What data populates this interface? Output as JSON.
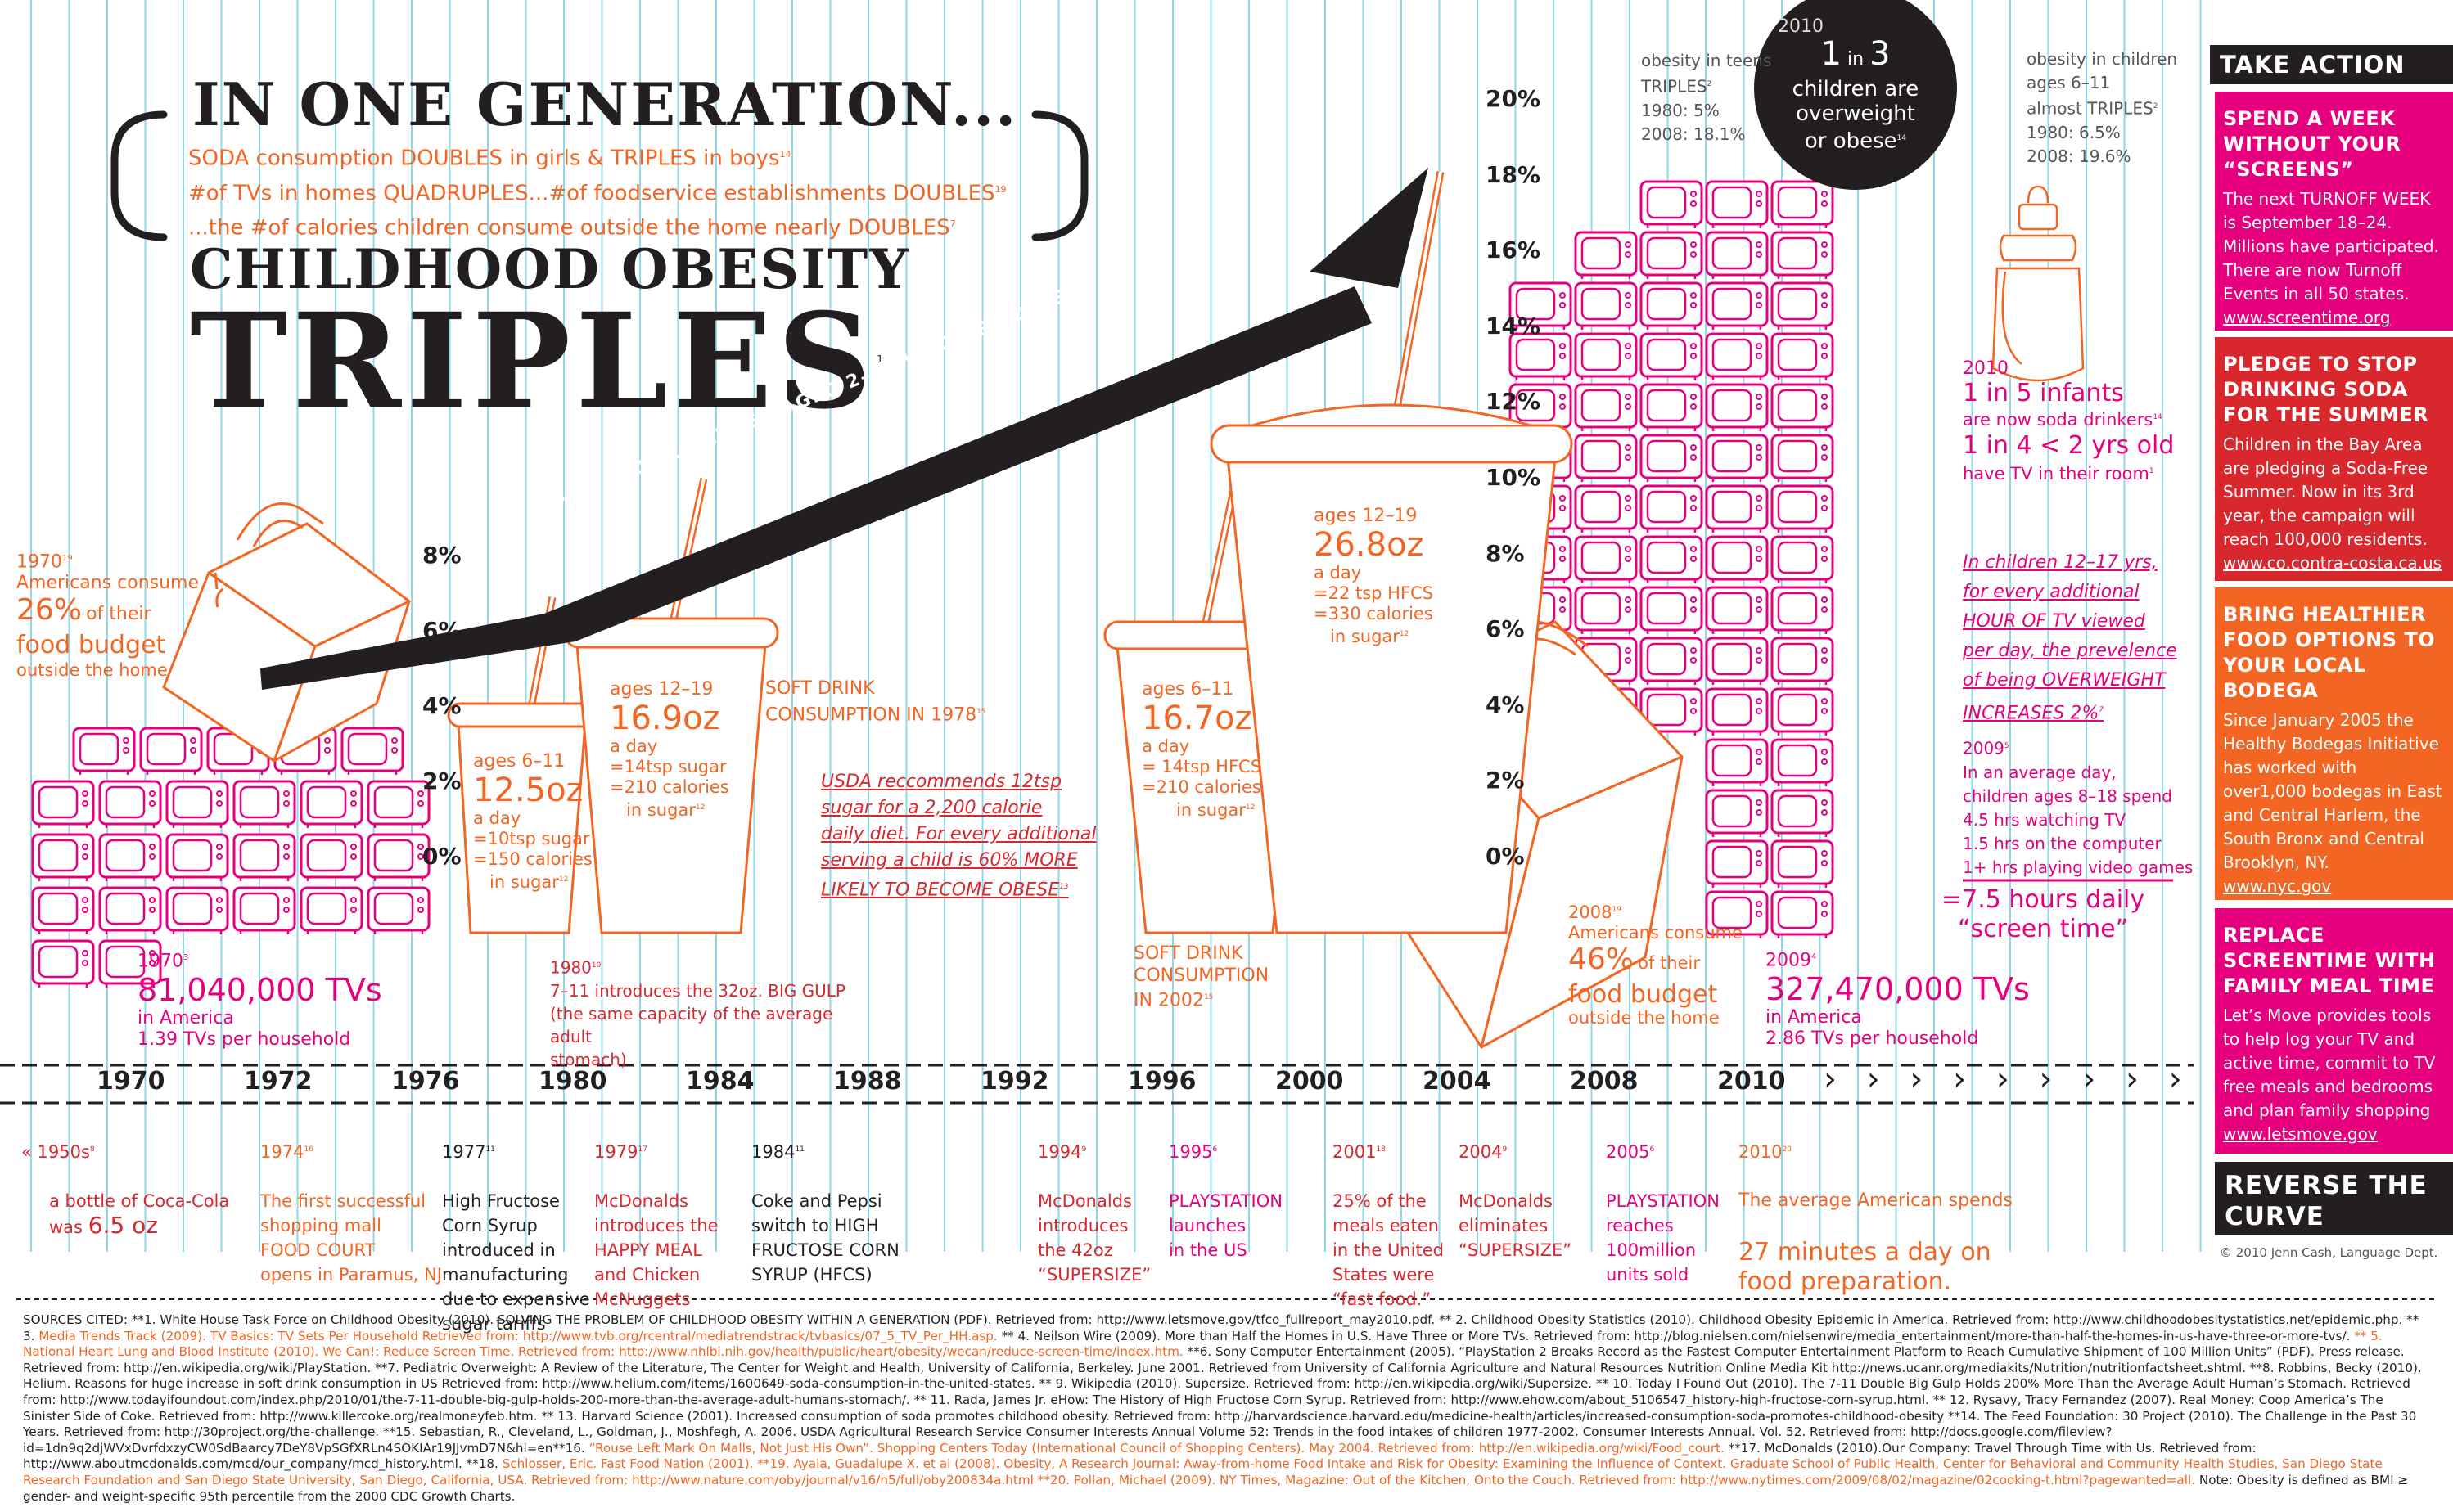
{
  "headline": {
    "line1": "IN ONE GENERATION...",
    "bullets": [
      {
        "text": "SODA consumption DOUBLES in girls & TRIPLES in boys",
        "note": "14"
      },
      {
        "text": "#of TVs in homes QUADRUPLES...#of foodservice establishments DOUBLES",
        "note": "19"
      },
      {
        "text": "...the #of calories children consume outside the home nearly DOUBLES",
        "note": "7"
      }
    ],
    "line2": "CHILDHOOD OBESITY",
    "line3": "TRIPLES",
    "line3_note": "1"
  },
  "colors": {
    "orange": "#f26522",
    "pink": "#e6007e",
    "red": "#d9272e",
    "black": "#231f20",
    "grid": "#7fd3e6"
  },
  "y_axis_left": {
    "ticks": [
      "8%",
      "6%",
      "4%",
      "2%",
      "0%"
    ]
  },
  "y_axis_right": {
    "ticks": [
      "20%",
      "18%",
      "16%",
      "14%",
      "12%",
      "10%",
      "8%",
      "6%",
      "4%",
      "2%",
      "0%"
    ]
  },
  "arrow_label": "› › ›  % OF CHILDREN AGED 2–19 WHO ARE OBESE  › › ›",
  "left_budget": {
    "year": "1970",
    "note": "19",
    "line1": "Americans consume",
    "pct": "26%",
    "of_their": "of their",
    "line3": "food budget",
    "line4": "outside the home"
  },
  "tvs_1970": {
    "year": "1970",
    "note": "3",
    "count": "81,040,000 TVs",
    "where": "in America",
    "per": "1.39 TVs per household"
  },
  "cup_1": {
    "age": "ages 6–11",
    "size": "12.5oz",
    "freq": "a day",
    "sugar": "=10tsp sugar",
    "cal": "=150 calories",
    "insugar": "in sugar",
    "note": "12"
  },
  "cup_2": {
    "age": "ages 12–19",
    "size": "16.9oz",
    "freq": "a day",
    "sugar": "=14tsp sugar",
    "cal": "=210 calories",
    "insugar": "in sugar",
    "note": "12"
  },
  "soft_1978": {
    "line1": "SOFT DRINK",
    "line2": "CONSUMPTION IN 1978",
    "note": "15"
  },
  "gulp_1980": {
    "year": "1980",
    "note": "10",
    "line1": "7–11 introduces the 32oz. BIG GULP",
    "line2": "(the same capacity of the average adult",
    "line3": "stomach)"
  },
  "usda_note": {
    "lines": [
      "USDA reccommends 12tsp",
      "sugar for a 2,200 calorie",
      "daily diet. For every additional",
      "serving a child  is 60% MORE",
      "LIKELY TO BECOME OBESE"
    ],
    "note": "13"
  },
  "cup_3": {
    "age": "ages 6–11",
    "size": "16.7oz",
    "freq": "a day",
    "sugar": "= 14tsp HFCS",
    "cal": "=210 calories",
    "insugar": "in sugar",
    "note": "12"
  },
  "cup_4": {
    "age": "ages 12–19",
    "size": "26.8oz",
    "freq": "a day",
    "sugar": "=22 tsp HFCS",
    "cal": "=330 calories",
    "insugar": "in sugar",
    "note": "12"
  },
  "soft_2002": {
    "line1": "SOFT DRINK",
    "line2": "CONSUMPTION",
    "line3": "IN 2002",
    "note": "15"
  },
  "budget_2008": {
    "year": "2008",
    "note": "19",
    "line1": "Americans consume",
    "pct": "46%",
    "of_their": "of their",
    "line3": "food budget",
    "line4": "outside the home"
  },
  "tvs_2009": {
    "year": "2009",
    "note": "4",
    "count": "327,470,000 TVs",
    "where": "in America",
    "per": "2.86 TVs per household"
  },
  "obesity_teens": {
    "l1": "obesity in teens",
    "l2": "TRIPLES",
    "note": "2",
    "l3": "1980: 5%",
    "l4": "2008: 18.1%"
  },
  "circle": {
    "year": "2010",
    "l1a": "1",
    "l1b": "in",
    "l1c": "3",
    "l2": "children are",
    "l3": "overweight",
    "l4": "or obese",
    "note": "14"
  },
  "obesity_children": {
    "l1": "obesity in children",
    "l2": "ages 6–11",
    "l3": "almost TRIPLES",
    "note": "2",
    "l4": "1980: 6.5%",
    "l5": "2008: 19.6%"
  },
  "infants": {
    "year": "2010",
    "l1": "1 in 5 infants",
    "l2": "are now soda drinkers",
    "note1": "14",
    "l3": "1 in 4 < 2 yrs old",
    "l4": "have TV in their room",
    "note2": "1"
  },
  "tv_overweight": {
    "lines": [
      "In children 12–17 yrs,",
      "for every additional",
      "HOUR OF TV viewed",
      "per day, the prevelence",
      "of being OVERWEIGHT",
      "INCREASES 2%"
    ],
    "note": "7"
  },
  "screen_2009": {
    "year": "2009",
    "note": "5",
    "lines": [
      "In an average day,",
      "children ages 8–18 spend",
      "4.5 hrs watching TV",
      "1.5 hrs on the computer",
      "1+ hrs playing video games"
    ],
    "total1": "=7.5 hours daily",
    "total2": "“screen time”"
  },
  "timeline": {
    "years": [
      "1970",
      "1972",
      "1976",
      "1980",
      "1984",
      "1988",
      "1992",
      "1996",
      "2000",
      "2004",
      "2008",
      "2010"
    ],
    "chevrons": "›  ›  ›  ›  ›  ›  ›  ›  ›  ›",
    "events": [
      {
        "date": "« 1950s",
        "note": "8",
        "text": "a bottle of Coca-Cola\nwas",
        "big": "6.5 oz"
      },
      {
        "date": "1974",
        "note": "16",
        "text": "The first successful\nshopping mall\nFOOD COURT\nopens in Paramus, NJ"
      },
      {
        "date": "1977",
        "note": "11",
        "text": "High Fructose\nCorn Syrup\nintroduced in\nmanufacturing\ndue to expensive\nsugar tariffs"
      },
      {
        "date": "1979",
        "note": "17",
        "text": "McDonalds\nintroduces the\nHAPPY MEAL\nand Chicken\nMcNuggets"
      },
      {
        "date": "1984",
        "note": "11",
        "text": "Coke and Pepsi\nswitch to HIGH\nFRUCTOSE CORN\nSYRUP (HFCS)"
      },
      {
        "date": "1994",
        "note": "9",
        "text": "McDonalds\nintroduces\nthe 42oz\n“SUPERSIZE”"
      },
      {
        "date": "1995",
        "note": "6",
        "text": "PLAYSTATION\nlaunches\nin the US"
      },
      {
        "date": "2001",
        "note": "18",
        "text": "25% of the\nmeals eaten\nin the United\nStates were\n“fast food.”"
      },
      {
        "date": "2004",
        "note": "9",
        "text": "McDonalds\neliminates\n“SUPERSIZE”"
      },
      {
        "date": "2005",
        "note": "6",
        "text": "PLAYSTATION\nreaches\n100million\nunits sold"
      },
      {
        "date": "2010",
        "note": "20",
        "text": "The average American spends",
        "big": "27 minutes a day on\nfood preparation."
      }
    ]
  },
  "sidebar": {
    "title": "TAKE ACTION",
    "cards": [
      {
        "heading": "SPEND A WEEK WITHOUT YOUR “SCREENS”",
        "body": "The next TURNOFF WEEK is September 18–24. Millions have participated. There are now Turnoff Events in all 50 states.",
        "link": "www.screentime.org",
        "color": "#e6007e"
      },
      {
        "heading": "PLEDGE TO STOP DRINKING SODA FOR THE SUMMER",
        "body": "Children in the Bay Area are pledging a Soda-Free Summer. Now in its 3rd year, the campaign will reach 100,000 residents.",
        "link": "www.co.contra-costa.ca.us",
        "color": "#d9272e"
      },
      {
        "heading": "BRING HEALTHIER FOOD OPTIONS TO YOUR LOCAL BODEGA",
        "body": "Since January 2005 the Healthy Bodegas Initiative has worked with over1,000 bodegas in East and Central Harlem, the South Bronx and Central Brooklyn, NY.",
        "link": "www.nyc.gov",
        "color": "#f26522"
      },
      {
        "heading": "REPLACE SCREENTIME WITH FAMILY MEAL TIME",
        "body": "Let’s Move provides tools to help log your TV and active time, commit to TV free meals and bedrooms and plan family shopping",
        "link": "www.letsmove.gov",
        "color": "#e6007e"
      }
    ],
    "footer": "REVERSE THE CURVE",
    "credit": "© 2010 Jenn Cash, Language Dept."
  },
  "sources": {
    "label": "SOURCES CITED:",
    "black1": "**1. White House Task Force on Childhood Obesity (2010). SOLVING THE PROBLEM OF CHILDHOOD OBESITY WITHIN A GENERATION (PDF). Retrieved from: http://www.letsmove.gov/tfco_fullreport_may2010.pdf. ** 2. Childhood Obesity Statistics (2010). Childhood Obesity Epidemic in America. Retrieved from: http://www.childhoodobesitystatistics.net/epidemic.php. ** 3. ",
    "orange1": "Media Trends Track (2009). TV Basics: TV Sets Per Household Retrieved from: http://www.tvb.org/rcentral/mediatrendstrack/tvbasics/07_5_TV_Per_HH.asp.",
    "black2": " ** 4. Neilson Wire (2009). More than Half the Homes in U.S. Have Three or More TVs. Retrieved from: http://blog.nielsen.com/nielsenwire/media_entertainment/more-than-half-the-homes-in-us-have-three-or-more-tvs/. ",
    "orange2": "** 5. National Heart Lung and Blood Institute (2010). We Can!: Reduce Screen Time. Retrieved from: http://www.nhlbi.nih.gov/health/public/heart/obesity/wecan/reduce-screen-time/index.htm.",
    "black3": " **6. Sony Computer Entertainment (2005). “PlayStation 2 Breaks Record as the Fastest Computer Entertainment Platform to Reach Cumulative Shipment of 100 Million Units” (PDF). Press release. Retrieved from: http://en.wikipedia.org/wiki/PlayStation. **7. Pediatric Overweight: A Review of the Literature, The Center for Weight and Health, University of California, Berkeley. June 2001. Retrieved from University of California Agriculture and Natural Resources Nutrition Online Media Kit http://news.ucanr.org/mediakits/Nutrition/nutritionfactsheet.shtml. **8. Robbins, Becky (2010). Helium. Reasons for huge increase in soft drink consumption in US Retrieved from: http://www.helium.com/items/1600649-soda-consumption-in-the-united-states. ** 9. Wikipedia (2010). Supersize. Retrieved from: http://en.wikipedia.org/wiki/Supersize. ** 10. Today I Found Out (2010). The 7-11 Double Big Gulp Holds 200% More Than the Average Adult Human’s Stomach. Retrieved from: http://www.todayifoundout.com/index.php/2010/01/the-7-11-double-big-gulp-holds-200-more-than-the-average-adult-humans-stomach/. ** 11. Rada, James Jr. eHow: The History of High Fructose Corn Syrup. Retrieved from: http://www.ehow.com/about_5106547_history-high-fructose-corn-syrup.html. ** 12. Rysavy, Tracy Fernandez (2007). Real Money: Coop America’s The Sinister Side of Coke. Retrieved from: http://www.killercoke.org/realmoneyfeb.htm. ** 13. Harvard Science (2001). Increased consumption of soda promotes childhood obesity. Retrieved from: http://harvardscience.harvard.edu/medicine-health/articles/increased-consumption-soda-promotes-childhood-obesity **14. The Feed Foundation: 30 Project (2010). The Challenge in the Past 30 Years. Retrieved from: http://30project.org/the-challenge. **15. Sebastian, R., Cleveland, L., Goldman, J., Moshfegh, A. 2006. USDA Agricultural Research Service Consumer Interests Annual Volume 52: Trends in the food intakes of children 1977-2002. Consumer Interests Annual. Vol. 52. Retrieved from: http://docs.google.com/fileview?id=1dn9q2djWVxDvrfdxzyCW0SdBaarcy7DeY8VpSGfXRLn4SOKIAr19JJvmD7N&hl=en**16. ",
    "orange3": "“Rouse Left Mark On Malls, Not Just His Own”. Shopping Centers Today (International Council of Shopping Centers). May 2004. Retrieved from: http://en.wikipedia.org/wiki/Food_court.",
    "black4": " **17. McDonalds (2010).Our Company: Travel Through Time with Us. Retrieved from: http://www.aboutmcdonalds.com/mcd/our_company/mcd_history.html. **18. ",
    "orange4": "Schlosser, Eric. Fast Food Nation (2001). **19. Ayala, Guadalupe X. et al (2008). Obesity, A Research Journal: Away-from-home Food Intake and Risk for Obesity: Examining the Influence of Context. Graduate School of Public Health, Center for Behavioral and Community Health Studies, San Diego State Research Foundation and San Diego State University, San Diego, California, USA. Retrieved from: http://www.nature.com/oby/journal/v16/n5/full/oby200834a.html **20. Pollan, Michael (2009). NY Times, Magazine: Out of the Kitchen, Onto the Couch. Retrieved from: http://www.nytimes.com/2009/08/02/magazine/02cooking-t.html?pagewanted=all.",
    "black5": " Note: Obesity is defined as BMI ≥ gender- and weight-specific 95th percentile from the 2000 CDC Growth Charts."
  }
}
